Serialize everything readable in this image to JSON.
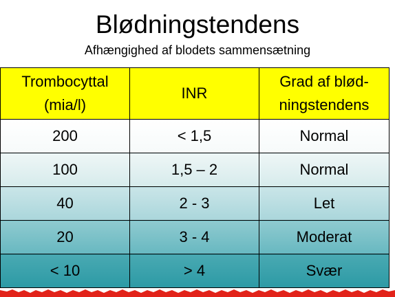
{
  "title": "Blødningstendens",
  "subtitle": "Afhængighed af blodets sammensætning",
  "table": {
    "headers": [
      {
        "line1": "Trombocyttal",
        "line2": "(mia/l)"
      },
      {
        "line1": "INR",
        "line2": ""
      },
      {
        "line1": "Grad af blød-",
        "line2": "ningstendens"
      }
    ],
    "rows": [
      [
        "200",
        "< 1,5",
        "Normal"
      ],
      [
        "100",
        "1,5 – 2",
        "Normal"
      ],
      [
        "40",
        "2 - 3",
        "Let"
      ],
      [
        "20",
        "3 - 4",
        "Moderat"
      ],
      [
        "< 10",
        "> 4",
        "Svær"
      ]
    ]
  },
  "colors": {
    "header_bg": "#ffff00",
    "gradient_top": "#ffffff",
    "gradient_bottom": "#2c9aa5",
    "torn_edge": "#e2231a"
  }
}
